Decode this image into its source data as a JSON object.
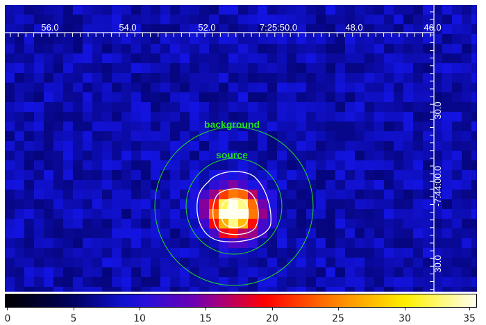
{
  "image": {
    "ra_ticks": [
      "56.0",
      "54.0",
      "52.0",
      "7:25:50.0",
      "48.0",
      "46.0"
    ],
    "dec_ticks": [
      "30.0",
      "-7:44:00.0",
      "30.0"
    ],
    "regions": {
      "background_label": "background",
      "source_label": "source"
    },
    "colors": {
      "region": "#22dd22",
      "contour": "#ffffff",
      "axis": "#ffffff"
    }
  },
  "colorbar": {
    "colormap": "heat",
    "ticks": [
      "0",
      "5",
      "10",
      "15",
      "20",
      "25",
      "30",
      "35"
    ],
    "range": [
      0,
      36
    ]
  }
}
